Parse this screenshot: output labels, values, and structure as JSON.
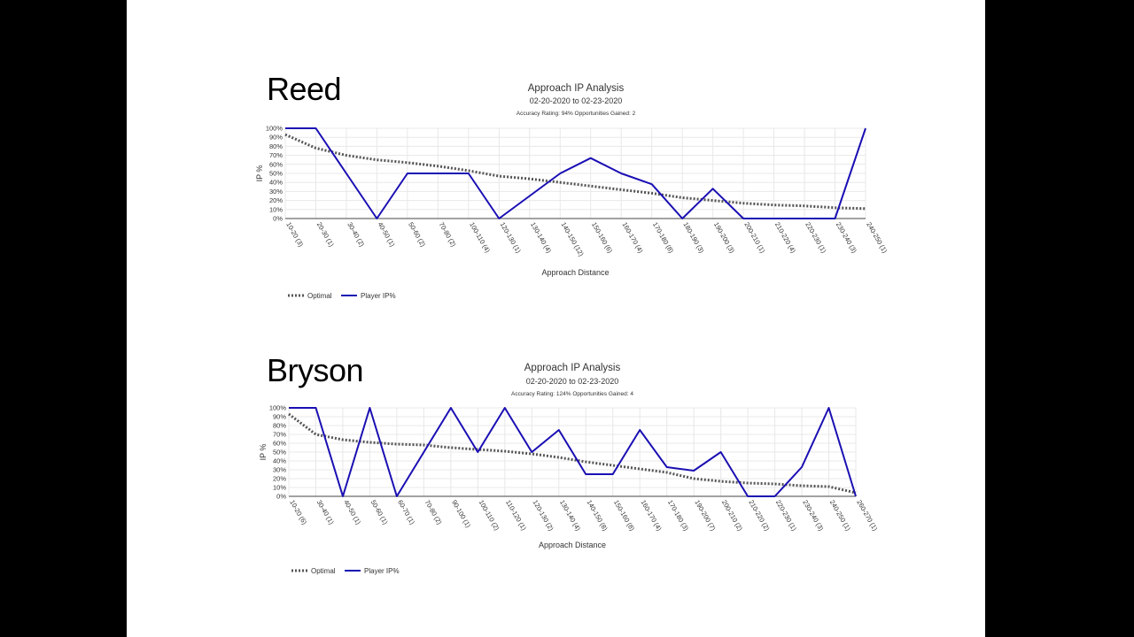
{
  "slide": {
    "background": "#ffffff",
    "frame_color": "#000000"
  },
  "colors": {
    "optimal": "#555555",
    "player": "#1a0fb3",
    "grid": "#e8e8e8",
    "axis": "#444444",
    "text": "#333333"
  },
  "chart_data": [
    {
      "type": "line",
      "player_name": "Reed",
      "title": "Approach IP Analysis",
      "subtitle": "02-20-2020 to 02-23-2020",
      "stats": "Accuracy Rating: 94% Opportunities Gained: 2",
      "xlabel": "Approach Distance",
      "ylabel": "IP %",
      "ylim": [
        0,
        100
      ],
      "yticks": [
        "0%",
        "10%",
        "20%",
        "30%",
        "40%",
        "50%",
        "60%",
        "70%",
        "80%",
        "90%",
        "100%"
      ],
      "grid": true,
      "legend_position": "bottom-left",
      "categories": [
        "10-20 (3)",
        "20-30 (1)",
        "30-40 (2)",
        "40-50 (1)",
        "50-60 (2)",
        "70-80 (2)",
        "100-110 (4)",
        "120-130 (1)",
        "130-140 (4)",
        "140-150 (12)",
        "150-160 (6)",
        "160-170 (4)",
        "170-180 (8)",
        "180-190 (3)",
        "190-200 (3)",
        "200-210 (1)",
        "210-220 (4)",
        "220-230 (1)",
        "230-240 (3)",
        "240-250 (1)"
      ],
      "series": [
        {
          "name": "Optimal",
          "style": "dotted",
          "values": [
            93,
            78,
            70,
            65,
            62,
            58,
            53,
            47,
            44,
            40,
            36,
            32,
            28,
            23,
            20,
            17,
            15,
            14,
            12,
            11
          ]
        },
        {
          "name": "Player IP%",
          "style": "solid",
          "values": [
            100,
            100,
            50,
            0,
            50,
            50,
            50,
            0,
            25,
            50,
            67,
            50,
            38,
            0,
            33,
            0,
            0,
            0,
            0,
            100
          ]
        }
      ]
    },
    {
      "type": "line",
      "player_name": "Bryson",
      "title": "Approach IP Analysis",
      "subtitle": "02-20-2020 to 02-23-2020",
      "stats": "Accuracy Rating: 124% Opportunities Gained: 4",
      "xlabel": "Approach Distance",
      "ylabel": "IP %",
      "ylim": [
        0,
        100
      ],
      "yticks": [
        "0%",
        "10%",
        "20%",
        "30%",
        "40%",
        "50%",
        "60%",
        "70%",
        "80%",
        "90%",
        "100%"
      ],
      "grid": true,
      "legend_position": "bottom-left",
      "categories": [
        "10-20 (6)",
        "30-40 (1)",
        "40-50 (1)",
        "50-60 (1)",
        "60-70 (1)",
        "70-80 (2)",
        "90-100 (1)",
        "100-110 (2)",
        "110-120 (1)",
        "120-130 (2)",
        "130-140 (4)",
        "140-150 (8)",
        "150-160 (8)",
        "160-170 (4)",
        "170-180 (3)",
        "190-200 (7)",
        "200-210 (2)",
        "210-220 (2)",
        "220-230 (1)",
        "230-240 (3)",
        "240-250 (1)",
        "260-270 (1)"
      ],
      "series": [
        {
          "name": "Optimal",
          "style": "dotted",
          "values": [
            93,
            70,
            64,
            61,
            59,
            58,
            55,
            53,
            51,
            48,
            44,
            39,
            35,
            31,
            27,
            20,
            17,
            15,
            14,
            12,
            11,
            4
          ]
        },
        {
          "name": "Player IP%",
          "style": "solid",
          "values": [
            100,
            100,
            0,
            100,
            0,
            50,
            100,
            50,
            100,
            50,
            75,
            25,
            25,
            75,
            33,
            29,
            50,
            0,
            0,
            33,
            100,
            0
          ]
        }
      ]
    }
  ]
}
